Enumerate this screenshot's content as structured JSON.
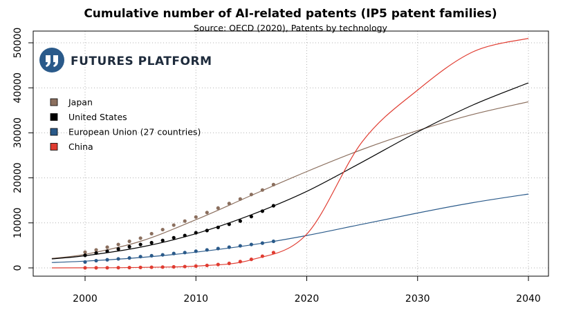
{
  "chart_data": {
    "type": "line",
    "title": "Cumulative number of AI-related patents (IP5 patent families)",
    "subtitle": "Source: OECD (2020), Patents by technology",
    "xlabel": "",
    "ylabel": "",
    "xlim": [
      1997,
      2040
    ],
    "ylim": [
      0,
      50000
    ],
    "xticks": [
      2000,
      2010,
      2020,
      2030,
      2040
    ],
    "yticks": [
      0,
      10000,
      20000,
      30000,
      40000,
      50000
    ],
    "grid": true,
    "legend_position": "top-left",
    "observed_years": [
      2000,
      2001,
      2002,
      2003,
      2004,
      2005,
      2006,
      2007,
      2008,
      2009,
      2010,
      2011,
      2012,
      2013,
      2014,
      2015,
      2016,
      2017
    ],
    "projection_years": [
      1997,
      2000,
      2005,
      2010,
      2015,
      2020,
      2025,
      2030,
      2035,
      2040
    ],
    "series": [
      {
        "name": "Japan",
        "color": "#8b6f5e",
        "observed": [
          3500,
          4000,
          4600,
          5200,
          5900,
          6600,
          7600,
          8500,
          9500,
          10400,
          11300,
          12300,
          13300,
          14300,
          15300,
          16300,
          17300,
          18500
        ],
        "projection": [
          2100,
          3000,
          5900,
          10700,
          16100,
          21400,
          26300,
          30500,
          34100,
          36900
        ]
      },
      {
        "name": "United States",
        "color": "#000000",
        "observed": [
          2800,
          3300,
          3700,
          4200,
          4700,
          5200,
          5600,
          6100,
          6700,
          7200,
          7800,
          8300,
          9000,
          9700,
          10400,
          11400,
          12600,
          13800
        ],
        "projection": [
          2000,
          2700,
          4600,
          7600,
          11800,
          17000,
          23500,
          30200,
          36200,
          41100
        ]
      },
      {
        "name": "European Union (27 countries)",
        "color": "#2a5a8a",
        "observed": [
          1300,
          1600,
          1800,
          2000,
          2200,
          2500,
          2700,
          2900,
          3200,
          3400,
          3700,
          4000,
          4300,
          4600,
          4900,
          5200,
          5500,
          5900
        ],
        "projection": [
          1200,
          1500,
          2300,
          3500,
          5100,
          7200,
          9700,
          12200,
          14500,
          16400
        ]
      },
      {
        "name": "China",
        "color": "#e03c31",
        "observed": [
          10,
          20,
          30,
          50,
          70,
          100,
          140,
          180,
          230,
          300,
          400,
          550,
          750,
          1000,
          1400,
          1900,
          2600,
          3400
        ],
        "projection": [
          0,
          10,
          100,
          400,
          1800,
          7500,
          28000,
          39500,
          48000,
          51000
        ]
      }
    ]
  },
  "brand": {
    "name": "FUTURES PLATFORM",
    "logo_color": "#2a5a8a",
    "logo_icon": "quote-marks-icon"
  }
}
